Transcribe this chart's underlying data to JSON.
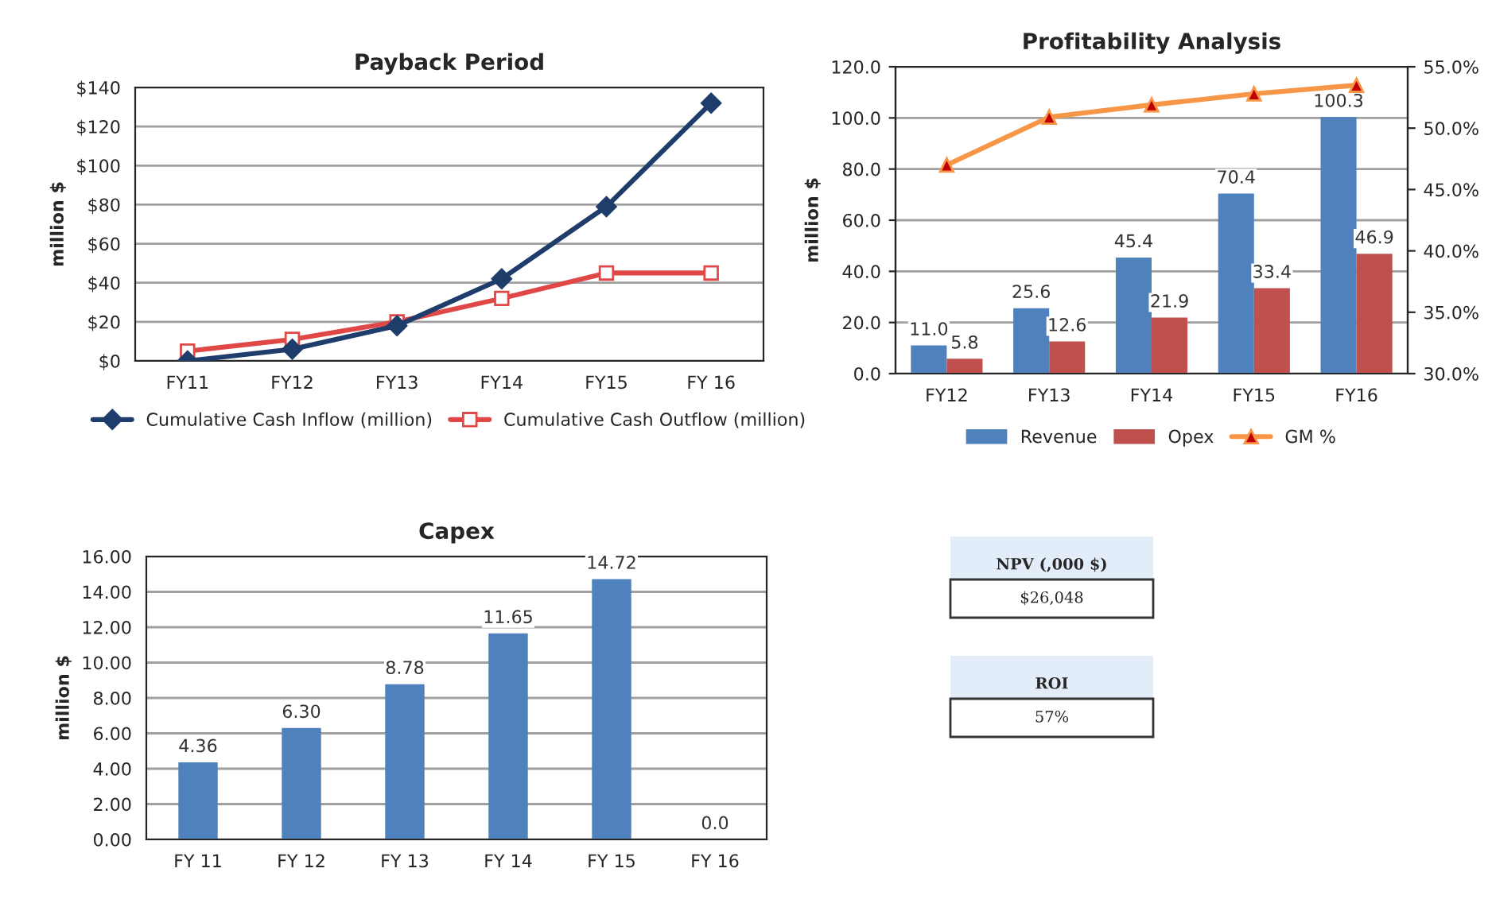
{
  "chart_data": [
    {
      "type": "line",
      "title": "Payback Period",
      "ylabel": "million $",
      "categories": [
        "FY11",
        "FY12",
        "FY13",
        "FY14",
        "FY15",
        "FY 16"
      ],
      "series": [
        {
          "name": "Cumulative Cash Inflow (million)",
          "color": "#1f3d6b",
          "values": [
            0,
            6,
            18,
            42,
            79,
            132
          ],
          "marker": "diamond"
        },
        {
          "name": "Cumulative Cash Outflow (million)",
          "color": "#e04848",
          "values": [
            5,
            11,
            20,
            32,
            45,
            45
          ],
          "marker": "square"
        }
      ],
      "ylim": [
        0,
        140
      ],
      "yticks": [
        {
          "value": 0,
          "label": "$0"
        },
        {
          "value": 20,
          "label": "$20"
        },
        {
          "value": 40,
          "label": "$40"
        },
        {
          "value": 60,
          "label": "$60"
        },
        {
          "value": 80,
          "label": "$80"
        },
        {
          "value": 100,
          "label": "$100"
        },
        {
          "value": 120,
          "label": "$120"
        },
        {
          "value": 140,
          "label": "$140"
        }
      ],
      "grid": "y",
      "legend": "bottom"
    },
    {
      "type": "bar",
      "title": "Profitability Analysis",
      "ylabel": "million $",
      "categories": [
        "FY12",
        "FY13",
        "FY14",
        "FY15",
        "FY16"
      ],
      "series": [
        {
          "name": "Revenue",
          "color": "#4f81bd",
          "values": [
            11.0,
            25.6,
            45.4,
            70.4,
            100.3
          ],
          "value_labels": [
            "11.0",
            "25.6",
            "45.4",
            "70.4",
            "100.3"
          ]
        },
        {
          "name": "Opex",
          "color": "#c0504d",
          "values": [
            5.8,
            12.6,
            21.9,
            33.4,
            46.9
          ],
          "value_labels": [
            "5.8",
            "12.6",
            "21.9",
            "33.4",
            "46.9"
          ]
        },
        {
          "name": "GM %",
          "type": "line",
          "axis": "y2",
          "color": "#f79646",
          "values": [
            47.0,
            50.9,
            51.9,
            52.8,
            53.5
          ],
          "marker": "triangle"
        }
      ],
      "ylim": [
        0,
        120
      ],
      "yticks": [
        {
          "value": 0,
          "label": "0.0"
        },
        {
          "value": 20,
          "label": "20.0"
        },
        {
          "value": 40,
          "label": "40.0"
        },
        {
          "value": 60,
          "label": "60.0"
        },
        {
          "value": 80,
          "label": "80.0"
        },
        {
          "value": 100,
          "label": "100.0"
        },
        {
          "value": 120,
          "label": "120.0"
        }
      ],
      "y2lim": [
        30,
        55
      ],
      "y2ticks": [
        {
          "value": 30,
          "label": "30.0%"
        },
        {
          "value": 35,
          "label": "35.0%"
        },
        {
          "value": 40,
          "label": "40.0%"
        },
        {
          "value": 45,
          "label": "45.0%"
        },
        {
          "value": 50,
          "label": "50.0%"
        },
        {
          "value": 55,
          "label": "55.0%"
        }
      ],
      "grid": "y",
      "legend": "bottom"
    },
    {
      "type": "bar",
      "title": "Capex",
      "ylabel": "million $",
      "categories": [
        "FY 11",
        "FY 12",
        "FY 13",
        "FY 14",
        "FY 15",
        "FY 16"
      ],
      "series": [
        {
          "color": "#4f81bd",
          "values": [
            4.36,
            6.3,
            8.78,
            11.65,
            14.72,
            0.0
          ],
          "value_labels": [
            "4.36",
            "6.30",
            "8.78",
            "11.65",
            "14.72",
            "0.0"
          ]
        }
      ],
      "ylim": [
        0,
        16
      ],
      "yticks": [
        {
          "value": 0,
          "label": "0.00"
        },
        {
          "value": 2,
          "label": "2.00"
        },
        {
          "value": 4,
          "label": "4.00"
        },
        {
          "value": 6,
          "label": "6.00"
        },
        {
          "value": 8,
          "label": "8.00"
        },
        {
          "value": 10,
          "label": "10.00"
        },
        {
          "value": 12,
          "label": "12.00"
        },
        {
          "value": 14,
          "label": "14.00"
        },
        {
          "value": 16,
          "label": "16.00"
        }
      ],
      "grid": "y"
    },
    {
      "type": "other",
      "annotations": [
        "NPV (,000 $)",
        "$26,048",
        "ROI",
        "57%"
      ]
    }
  ]
}
